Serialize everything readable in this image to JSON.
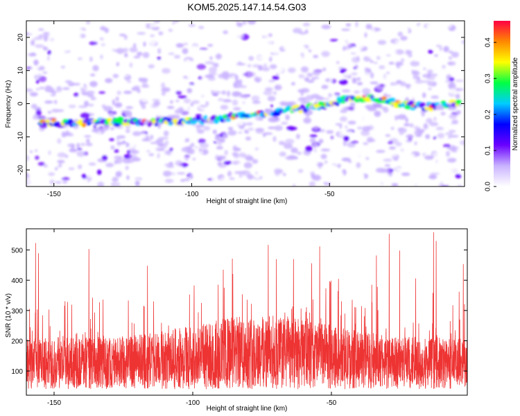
{
  "figure": {
    "title": "KOM5.2025.147.14.54.G03"
  },
  "chart_data": [
    {
      "type": "heatmap",
      "xlabel": "Height of straight line (km)",
      "ylabel": "Frequency (Hz)",
      "xlim": [
        -160,
        -1
      ],
      "ylim": [
        -25,
        25
      ],
      "xticks": [
        -150,
        -100,
        -50
      ],
      "yticks": [
        -20,
        -10,
        0,
        10,
        20
      ],
      "trace": {
        "x": [
          -153,
          -145,
          -135,
          -125,
          -115,
          -105,
          -95,
          -85,
          -75,
          -65,
          -55,
          -45,
          -35,
          -25,
          -15,
          -5
        ],
        "y": [
          -5.5,
          -6,
          -5.5,
          -5.5,
          -5.5,
          -5.5,
          -5,
          -4,
          -3,
          -2,
          -1,
          1,
          2,
          0,
          -1,
          0
        ]
      },
      "colorbar": {
        "label": "Normalized spectral amplitude",
        "range": [
          0,
          0.46
        ],
        "ticks": [
          0.0,
          0.1,
          0.2,
          0.3,
          0.4
        ],
        "colors": [
          "#ffffff",
          "#c9b3ff",
          "#6a00ff",
          "#0000ff",
          "#00ccff",
          "#00ff44",
          "#ffff00",
          "#ff8800",
          "#ff0044"
        ]
      }
    },
    {
      "type": "line",
      "xlabel": "Height of straight line (km)",
      "ylabel": "SNR (10 * v/v)",
      "xlim": [
        -160,
        -1
      ],
      "ylim": [
        20,
        570
      ],
      "xticks": [
        -150,
        -100,
        -50
      ],
      "yticks": [
        100,
        200,
        300,
        400,
        500
      ],
      "series": [
        {
          "color": "#ee3333",
          "points_per_km": 18,
          "baseline": 140,
          "peak": 560
        }
      ]
    }
  ]
}
